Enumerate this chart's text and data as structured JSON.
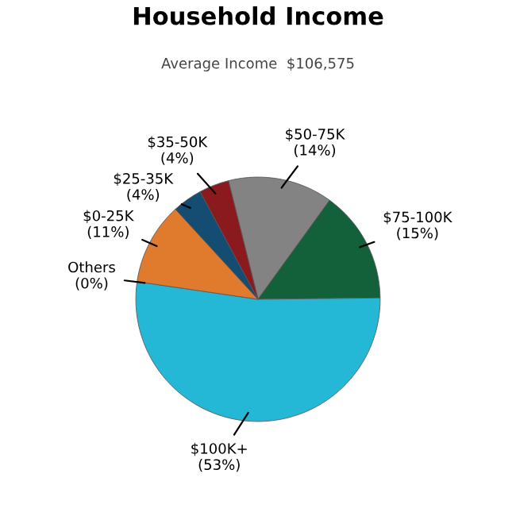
{
  "chart_data": {
    "type": "pie",
    "title": "Household Income",
    "subtitle": "Average Income  $106,575",
    "categories": [
      "$50-75K",
      "$75-100K",
      "$100K+",
      "Others",
      "$0-25K",
      "$25-35K",
      "$35-50K"
    ],
    "values": [
      14,
      15,
      53,
      0,
      11,
      4,
      4
    ],
    "value_labels": [
      "(14%)",
      "(15%)",
      "(53%)",
      "(0%)",
      "(11%)",
      "(4%)",
      "(4%)"
    ],
    "colors": [
      "#838383",
      "#12613a",
      "#25b8d6",
      "#aaaaaa",
      "#e07a2c",
      "#154c72",
      "#8a1a1d"
    ]
  }
}
